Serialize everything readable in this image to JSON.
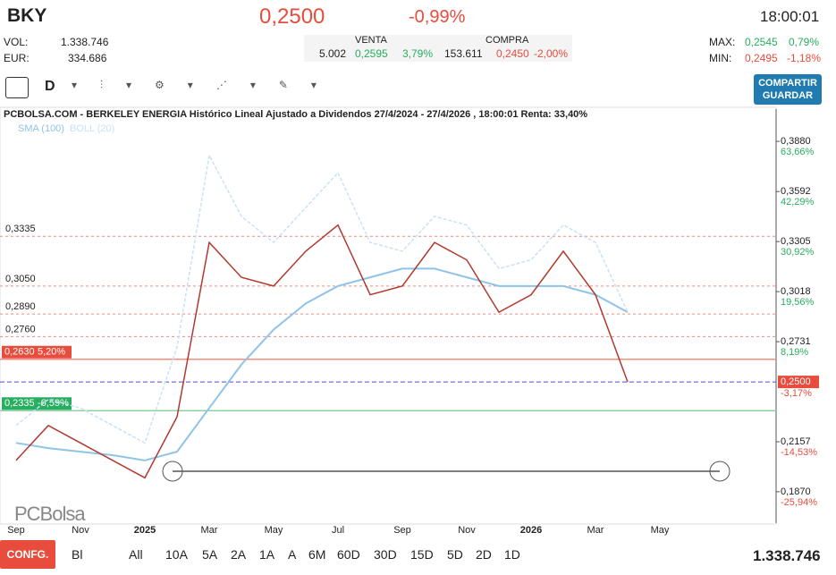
{
  "header": {
    "ticker": "BKY",
    "price": "0,2500",
    "change": "-0,99%",
    "time": "18:00:01",
    "vol_label": "VOL:",
    "vol": "1.338.746",
    "eur_label": "EUR:",
    "eur": "334.686",
    "venta_label": "VENTA",
    "venta_qty": "5.002",
    "venta_price": "0,2595",
    "venta_pct": "3,79%",
    "compra_label": "COMPRA",
    "compra_qty": "153.611",
    "compra_price": "0,2450",
    "compra_pct": "-2,00%",
    "max_label": "MAX:",
    "max": "0,2545",
    "max_pct": "0,79%",
    "min_label": "MIN:",
    "min": "0,2495",
    "min_pct": "-1,18%"
  },
  "toolbar": {
    "period": "D",
    "share": "COMPARTIR",
    "save": "GUARDAR"
  },
  "footer": {
    "config": "CONFG.",
    "mode": "Bl",
    "ranges": [
      "All",
      "10A",
      "5A",
      "2A",
      "1A",
      "A",
      "6M",
      "60D",
      "30D",
      "15D",
      "5D",
      "2D",
      "1D"
    ],
    "volume": "1.338.746"
  },
  "chart_data": {
    "type": "line",
    "title": "PCBOLSA.COM - BERKELEY ENERGIA Histórico Lineal Ajustado a Dividendos 27/4/2024 - 27/4/2026 , 18:00:01 Renta: 33,40%",
    "watermark": "PCBolsa",
    "categories": [
      "Sep",
      null,
      "Nov",
      null,
      "2025",
      null,
      "Mar",
      null,
      "May",
      null,
      "Jul",
      null,
      "Sep",
      null,
      "Nov",
      null,
      "2026",
      null,
      "Mar",
      null,
      "May"
    ],
    "values": [
      0.205,
      0.225,
      0.215,
      0.205,
      0.195,
      0.23,
      0.33,
      0.31,
      0.305,
      0.325,
      0.34,
      0.3,
      0.305,
      0.33,
      0.32,
      0.29,
      0.3,
      0.325,
      0.3,
      0.25,
      null
    ],
    "color": "#b03a2e",
    "series": [
      {
        "name": "SMA (100)",
        "color": "#8fc3e8",
        "values": [
          0.215,
          0.212,
          0.21,
          0.208,
          0.205,
          0.21,
          0.235,
          0.26,
          0.28,
          0.295,
          0.305,
          0.31,
          0.315,
          0.315,
          0.31,
          0.305,
          0.305,
          0.305,
          0.3,
          0.29,
          null
        ]
      },
      {
        "name": "BOLL (20)",
        "color": "#c9e2f5",
        "values": [
          0.225,
          0.24,
          0.235,
          0.225,
          0.215,
          0.27,
          0.38,
          0.345,
          0.33,
          0.35,
          0.37,
          0.33,
          0.325,
          0.345,
          0.34,
          0.315,
          0.32,
          0.34,
          0.33,
          0.29,
          null
        ]
      }
    ],
    "ylim": [
      0.169,
      0.4065
    ],
    "yticks": [
      {
        "value": 0.388,
        "label": "0,3880"
      },
      {
        "value": 0.3592,
        "label": "0,3592"
      },
      {
        "value": 0.3305,
        "label": "0,3305"
      },
      {
        "value": 0.3018,
        "label": "0,3018"
      },
      {
        "value": 0.2731,
        "label": "0,2731"
      },
      {
        "value": 0.2157,
        "label": "0,2157"
      },
      {
        "value": 0.187,
        "label": "0,1870"
      }
    ],
    "ytick_changes": [
      "63,66%",
      "42,29%",
      "30,92%",
      "19,56%",
      "8,19%",
      "-14,53%",
      "-25,94%"
    ],
    "last": {
      "value": 0.25,
      "label": "0,2500",
      "change": "-3,17%"
    },
    "levels": [
      {
        "value": 0.3335,
        "label": "0,3335"
      },
      {
        "value": 0.305,
        "label": "0,3050"
      },
      {
        "value": 0.289,
        "label": "0,2890"
      },
      {
        "value": 0.276,
        "label": "0,2760"
      }
    ],
    "resistance": {
      "value": 0.263,
      "label": "0,2630",
      "change": "5,20%"
    },
    "support": {
      "value": 0.2335,
      "label": "0,2335",
      "change": "-6,59%"
    }
  }
}
